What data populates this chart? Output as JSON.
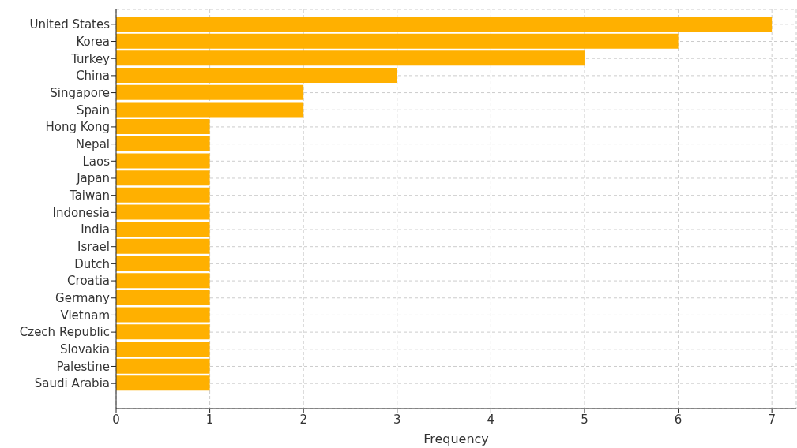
{
  "chart_data": {
    "type": "bar",
    "orientation": "horizontal",
    "xlabel": "Frequency",
    "categories": [
      "United States",
      "Korea",
      "Turkey",
      "China",
      "Singapore",
      "Spain",
      "Hong Kong",
      "Nepal",
      "Laos",
      "Japan",
      "Taiwan",
      "Indonesia",
      "India",
      "Israel",
      "Dutch",
      "Croatia",
      "Germany",
      "Vietnam",
      "Czech Republic",
      "Slovakia",
      "Palestine",
      "Saudi Arabia"
    ],
    "values": [
      7,
      6,
      5,
      3,
      2,
      2,
      1,
      1,
      1,
      1,
      1,
      1,
      1,
      1,
      1,
      1,
      1,
      1,
      1,
      1,
      1,
      1
    ],
    "color": "#ffb000",
    "xlim": [
      0,
      7.26
    ],
    "xticks": [
      0,
      1,
      2,
      3,
      4,
      5,
      6,
      7
    ],
    "grid": true
  }
}
